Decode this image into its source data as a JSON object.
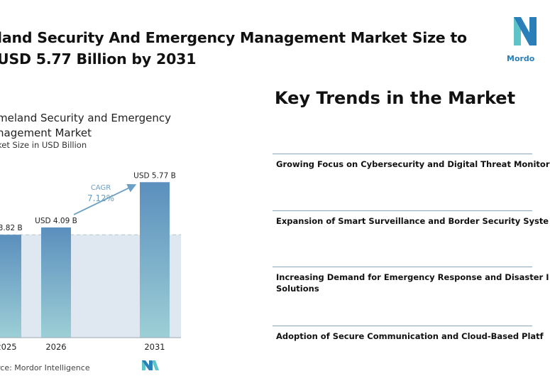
{
  "header": {
    "title_line1": "land Security And Emergency Management Market Size to",
    "title_line2": "USD 5.77 Billion by 2031",
    "logo_text": "Mordo"
  },
  "chart_panel": {
    "title_line1": "meland Security and Emergency",
    "title_line2": "nagement Market",
    "subtitle": "ket Size in USD Billion",
    "source": "rce: Mordor Intelligence"
  },
  "chart_data": {
    "type": "bar",
    "categories": [
      "2025",
      "2026",
      "2031"
    ],
    "values": [
      3.82,
      4.09,
      5.77
    ],
    "value_labels": [
      "D 3.82 B",
      "USD 4.09 B",
      "USD 5.77 B"
    ],
    "cagr_label": "CAGR",
    "cagr_value": "7.12%",
    "ylim": [
      0,
      6.2
    ],
    "grid": false,
    "reference_line_value": 3.82
  },
  "trends": {
    "title": "Key Trends in the Market",
    "items": [
      "Growing Focus on Cybersecurity and Digital Threat Monitor",
      "Expansion of Smart Surveillance and Border Security Syste",
      "Increasing Demand for Emergency Response and Disaster I",
      "Solutions",
      "Adoption of Secure Communication and Cloud-Based Platf"
    ]
  },
  "colors": {
    "bar_top": "#5b8fbd",
    "bar_bottom": "#9dcfd6",
    "shade": "#dfe8f0",
    "accent": "#6b9fc4",
    "logo_blue": "#2a7fb8",
    "logo_teal": "#5fc4c9"
  }
}
